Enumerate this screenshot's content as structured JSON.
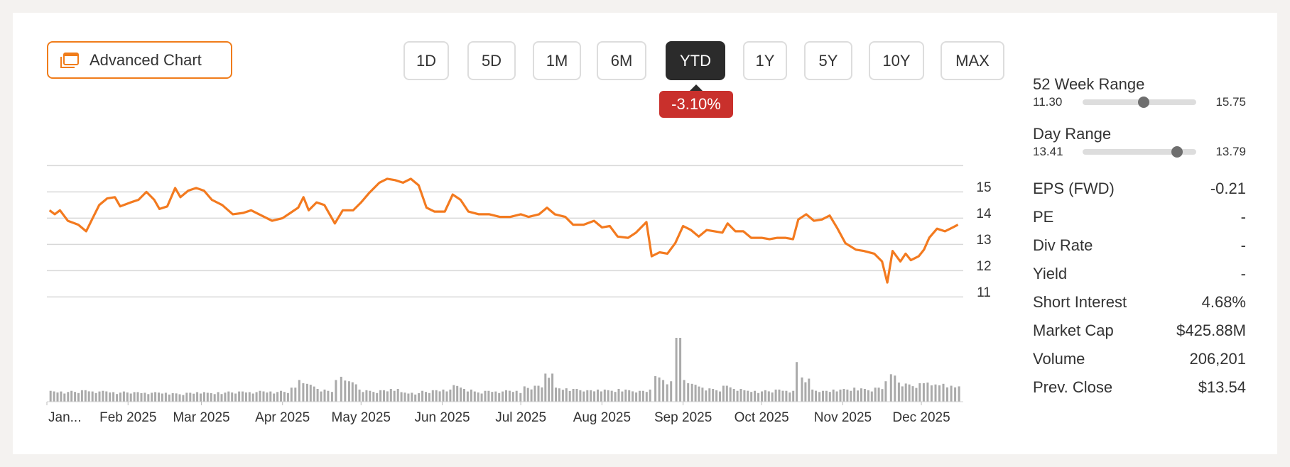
{
  "toolbar": {
    "advanced_chart_label": "Advanced Chart",
    "periods": [
      "1D",
      "5D",
      "1M",
      "6M",
      "YTD",
      "1Y",
      "5Y",
      "10Y",
      "MAX"
    ],
    "active_period": "YTD",
    "change_badge": "-3.10%"
  },
  "colors": {
    "accent": "#f07c1a",
    "line": "#f37a1f",
    "negative": "#c9302c",
    "volume": "#aaaaaa"
  },
  "stats": {
    "week52": {
      "label": "52 Week Range",
      "low": "11.30",
      "high": "15.75",
      "position": 0.54
    },
    "day": {
      "label": "Day Range",
      "low": "13.41",
      "high": "13.79",
      "position": 0.83
    },
    "rows": [
      {
        "label": "EPS (FWD)",
        "value": "-0.21"
      },
      {
        "label": "PE",
        "value": "-"
      },
      {
        "label": "Div Rate",
        "value": "-"
      },
      {
        "label": "Yield",
        "value": "-"
      },
      {
        "label": "Short Interest",
        "value": "4.68%"
      },
      {
        "label": "Market Cap",
        "value": "$425.88M"
      },
      {
        "label": "Volume",
        "value": "206,201"
      },
      {
        "label": "Prev. Close",
        "value": "$13.54"
      }
    ]
  },
  "chart_data": {
    "type": "line",
    "y_ticks": [
      15,
      14,
      13,
      12,
      11
    ],
    "ylim": [
      10.5,
      15.5
    ],
    "grid": true,
    "x_ticks": [
      "Jan...",
      "Feb 2025",
      "Mar 2025",
      "Apr 2025",
      "May 2025",
      "Jun 2025",
      "Jul 2025",
      "Aug 2025",
      "Sep 2025",
      "Oct 2025",
      "Nov 2025",
      "Dec 2025"
    ],
    "price_series": [
      [
        "2025-01-02",
        14.1
      ],
      [
        "2025-01-04",
        13.95
      ],
      [
        "2025-01-06",
        14.1
      ],
      [
        "2025-01-09",
        13.7
      ],
      [
        "2025-01-13",
        13.55
      ],
      [
        "2025-01-16",
        13.3
      ],
      [
        "2025-01-19",
        13.9
      ],
      [
        "2025-01-21",
        14.3
      ],
      [
        "2025-01-24",
        14.55
      ],
      [
        "2025-01-27",
        14.6
      ],
      [
        "2025-01-29",
        14.25
      ],
      [
        "2025-02-02",
        14.4
      ],
      [
        "2025-02-05",
        14.5
      ],
      [
        "2025-02-08",
        14.8
      ],
      [
        "2025-02-11",
        14.5
      ],
      [
        "2025-02-13",
        14.15
      ],
      [
        "2025-02-16",
        14.25
      ],
      [
        "2025-02-19",
        14.95
      ],
      [
        "2025-02-21",
        14.6
      ],
      [
        "2025-02-24",
        14.85
      ],
      [
        "2025-02-27",
        14.95
      ],
      [
        "2025-03-02",
        14.85
      ],
      [
        "2025-03-05",
        14.5
      ],
      [
        "2025-03-09",
        14.3
      ],
      [
        "2025-03-13",
        13.95
      ],
      [
        "2025-03-17",
        14.0
      ],
      [
        "2025-03-20",
        14.1
      ],
      [
        "2025-03-24",
        13.9
      ],
      [
        "2025-03-28",
        13.7
      ],
      [
        "2025-04-01",
        13.8
      ],
      [
        "2025-04-04",
        14.0
      ],
      [
        "2025-04-07",
        14.2
      ],
      [
        "2025-04-09",
        14.6
      ],
      [
        "2025-04-11",
        14.1
      ],
      [
        "2025-04-14",
        14.4
      ],
      [
        "2025-04-17",
        14.3
      ],
      [
        "2025-04-21",
        13.6
      ],
      [
        "2025-04-24",
        14.1
      ],
      [
        "2025-04-28",
        14.1
      ],
      [
        "2025-05-01",
        14.4
      ],
      [
        "2025-05-04",
        14.75
      ],
      [
        "2025-05-08",
        15.15
      ],
      [
        "2025-05-11",
        15.3
      ],
      [
        "2025-05-14",
        15.25
      ],
      [
        "2025-05-17",
        15.15
      ],
      [
        "2025-05-20",
        15.3
      ],
      [
        "2025-05-23",
        15.05
      ],
      [
        "2025-05-26",
        14.2
      ],
      [
        "2025-05-29",
        14.05
      ],
      [
        "2025-06-02",
        14.05
      ],
      [
        "2025-06-05",
        14.7
      ],
      [
        "2025-06-08",
        14.5
      ],
      [
        "2025-06-11",
        14.05
      ],
      [
        "2025-06-15",
        13.95
      ],
      [
        "2025-06-19",
        13.95
      ],
      [
        "2025-06-23",
        13.85
      ],
      [
        "2025-06-27",
        13.85
      ],
      [
        "2025-07-01",
        13.95
      ],
      [
        "2025-07-04",
        13.85
      ],
      [
        "2025-07-08",
        13.95
      ],
      [
        "2025-07-11",
        14.2
      ],
      [
        "2025-07-14",
        13.95
      ],
      [
        "2025-07-18",
        13.85
      ],
      [
        "2025-07-21",
        13.55
      ],
      [
        "2025-07-25",
        13.55
      ],
      [
        "2025-07-29",
        13.7
      ],
      [
        "2025-08-01",
        13.45
      ],
      [
        "2025-08-04",
        13.5
      ],
      [
        "2025-08-07",
        13.1
      ],
      [
        "2025-08-11",
        13.05
      ],
      [
        "2025-08-14",
        13.25
      ],
      [
        "2025-08-18",
        13.65
      ],
      [
        "2025-08-20",
        12.35
      ],
      [
        "2025-08-23",
        12.5
      ],
      [
        "2025-08-26",
        12.45
      ],
      [
        "2025-08-29",
        12.85
      ],
      [
        "2025-09-01",
        13.5
      ],
      [
        "2025-09-04",
        13.35
      ],
      [
        "2025-09-07",
        13.1
      ],
      [
        "2025-09-10",
        13.35
      ],
      [
        "2025-09-13",
        13.3
      ],
      [
        "2025-09-16",
        13.25
      ],
      [
        "2025-09-18",
        13.6
      ],
      [
        "2025-09-21",
        13.3
      ],
      [
        "2025-09-24",
        13.3
      ],
      [
        "2025-09-27",
        13.05
      ],
      [
        "2025-10-01",
        13.05
      ],
      [
        "2025-10-04",
        13.0
      ],
      [
        "2025-10-07",
        13.05
      ],
      [
        "2025-10-10",
        13.05
      ],
      [
        "2025-10-13",
        13.0
      ],
      [
        "2025-10-15",
        13.75
      ],
      [
        "2025-10-18",
        13.95
      ],
      [
        "2025-10-21",
        13.7
      ],
      [
        "2025-10-24",
        13.75
      ],
      [
        "2025-10-27",
        13.9
      ],
      [
        "2025-10-30",
        13.4
      ],
      [
        "2025-11-02",
        12.85
      ],
      [
        "2025-11-06",
        12.6
      ],
      [
        "2025-11-09",
        12.55
      ],
      [
        "2025-11-13",
        12.45
      ],
      [
        "2025-11-16",
        12.15
      ],
      [
        "2025-11-18",
        11.35
      ],
      [
        "2025-11-20",
        12.55
      ],
      [
        "2025-11-23",
        12.15
      ],
      [
        "2025-11-25",
        12.45
      ],
      [
        "2025-11-27",
        12.2
      ],
      [
        "2025-11-30",
        12.35
      ],
      [
        "2025-12-02",
        12.6
      ],
      [
        "2025-12-04",
        13.05
      ],
      [
        "2025-12-07",
        13.4
      ],
      [
        "2025-12-10",
        13.3
      ],
      [
        "2025-12-13",
        13.45
      ],
      [
        "2025-12-15",
        13.55
      ]
    ],
    "volume_series": [
      [
        "2025-01-02",
        0.17
      ],
      [
        "2025-01-06",
        0.16
      ],
      [
        "2025-01-10",
        0.17
      ],
      [
        "2025-01-14",
        0.18
      ],
      [
        "2025-01-18",
        0.16
      ],
      [
        "2025-01-22",
        0.17
      ],
      [
        "2025-01-26",
        0.15
      ],
      [
        "2025-01-30",
        0.16
      ],
      [
        "2025-02-03",
        0.15
      ],
      [
        "2025-02-07",
        0.14
      ],
      [
        "2025-02-11",
        0.15
      ],
      [
        "2025-02-15",
        0.14
      ],
      [
        "2025-02-19",
        0.13
      ],
      [
        "2025-02-23",
        0.14
      ],
      [
        "2025-02-27",
        0.15
      ],
      [
        "2025-03-03",
        0.14
      ],
      [
        "2025-03-07",
        0.15
      ],
      [
        "2025-03-11",
        0.16
      ],
      [
        "2025-03-15",
        0.16
      ],
      [
        "2025-03-19",
        0.15
      ],
      [
        "2025-03-23",
        0.17
      ],
      [
        "2025-03-27",
        0.16
      ],
      [
        "2025-03-31",
        0.17
      ],
      [
        "2025-04-04",
        0.22
      ],
      [
        "2025-04-07",
        0.34
      ],
      [
        "2025-04-10",
        0.28
      ],
      [
        "2025-04-14",
        0.2
      ],
      [
        "2025-04-18",
        0.17
      ],
      [
        "2025-04-21",
        0.34
      ],
      [
        "2025-04-23",
        0.39
      ],
      [
        "2025-04-26",
        0.32
      ],
      [
        "2025-04-30",
        0.19
      ],
      [
        "2025-05-04",
        0.17
      ],
      [
        "2025-05-08",
        0.18
      ],
      [
        "2025-05-12",
        0.2
      ],
      [
        "2025-05-16",
        0.15
      ],
      [
        "2025-05-20",
        0.14
      ],
      [
        "2025-05-24",
        0.17
      ],
      [
        "2025-05-28",
        0.18
      ],
      [
        "2025-06-01",
        0.19
      ],
      [
        "2025-06-05",
        0.26
      ],
      [
        "2025-06-09",
        0.2
      ],
      [
        "2025-06-13",
        0.16
      ],
      [
        "2025-06-17",
        0.17
      ],
      [
        "2025-06-21",
        0.16
      ],
      [
        "2025-06-25",
        0.18
      ],
      [
        "2025-06-29",
        0.17
      ],
      [
        "2025-07-02",
        0.24
      ],
      [
        "2025-07-06",
        0.25
      ],
      [
        "2025-07-10",
        0.44
      ],
      [
        "2025-07-14",
        0.22
      ],
      [
        "2025-07-18",
        0.21
      ],
      [
        "2025-07-22",
        0.2
      ],
      [
        "2025-07-26",
        0.18
      ],
      [
        "2025-07-30",
        0.19
      ],
      [
        "2025-08-03",
        0.18
      ],
      [
        "2025-08-07",
        0.2
      ],
      [
        "2025-08-11",
        0.18
      ],
      [
        "2025-08-15",
        0.17
      ],
      [
        "2025-08-19",
        0.19
      ],
      [
        "2025-08-21",
        0.4
      ],
      [
        "2025-08-24",
        0.34
      ],
      [
        "2025-08-27",
        0.32
      ],
      [
        "2025-08-29",
        1.0
      ],
      [
        "2025-09-01",
        0.34
      ],
      [
        "2025-09-04",
        0.28
      ],
      [
        "2025-09-08",
        0.22
      ],
      [
        "2025-09-12",
        0.2
      ],
      [
        "2025-09-16",
        0.25
      ],
      [
        "2025-09-20",
        0.2
      ],
      [
        "2025-09-24",
        0.18
      ],
      [
        "2025-09-28",
        0.17
      ],
      [
        "2025-10-02",
        0.18
      ],
      [
        "2025-10-06",
        0.19
      ],
      [
        "2025-10-10",
        0.17
      ],
      [
        "2025-10-14",
        0.62
      ],
      [
        "2025-10-16",
        0.38
      ],
      [
        "2025-10-20",
        0.19
      ],
      [
        "2025-10-24",
        0.17
      ],
      [
        "2025-10-28",
        0.19
      ],
      [
        "2025-11-01",
        0.2
      ],
      [
        "2025-11-05",
        0.22
      ],
      [
        "2025-11-09",
        0.2
      ],
      [
        "2025-11-13",
        0.22
      ],
      [
        "2025-11-17",
        0.32
      ],
      [
        "2025-11-19",
        0.43
      ],
      [
        "2025-11-22",
        0.3
      ],
      [
        "2025-11-26",
        0.27
      ],
      [
        "2025-11-30",
        0.29
      ],
      [
        "2025-12-03",
        0.3
      ],
      [
        "2025-12-06",
        0.27
      ],
      [
        "2025-12-09",
        0.28
      ],
      [
        "2025-12-12",
        0.25
      ],
      [
        "2025-12-15",
        0.24
      ]
    ]
  }
}
